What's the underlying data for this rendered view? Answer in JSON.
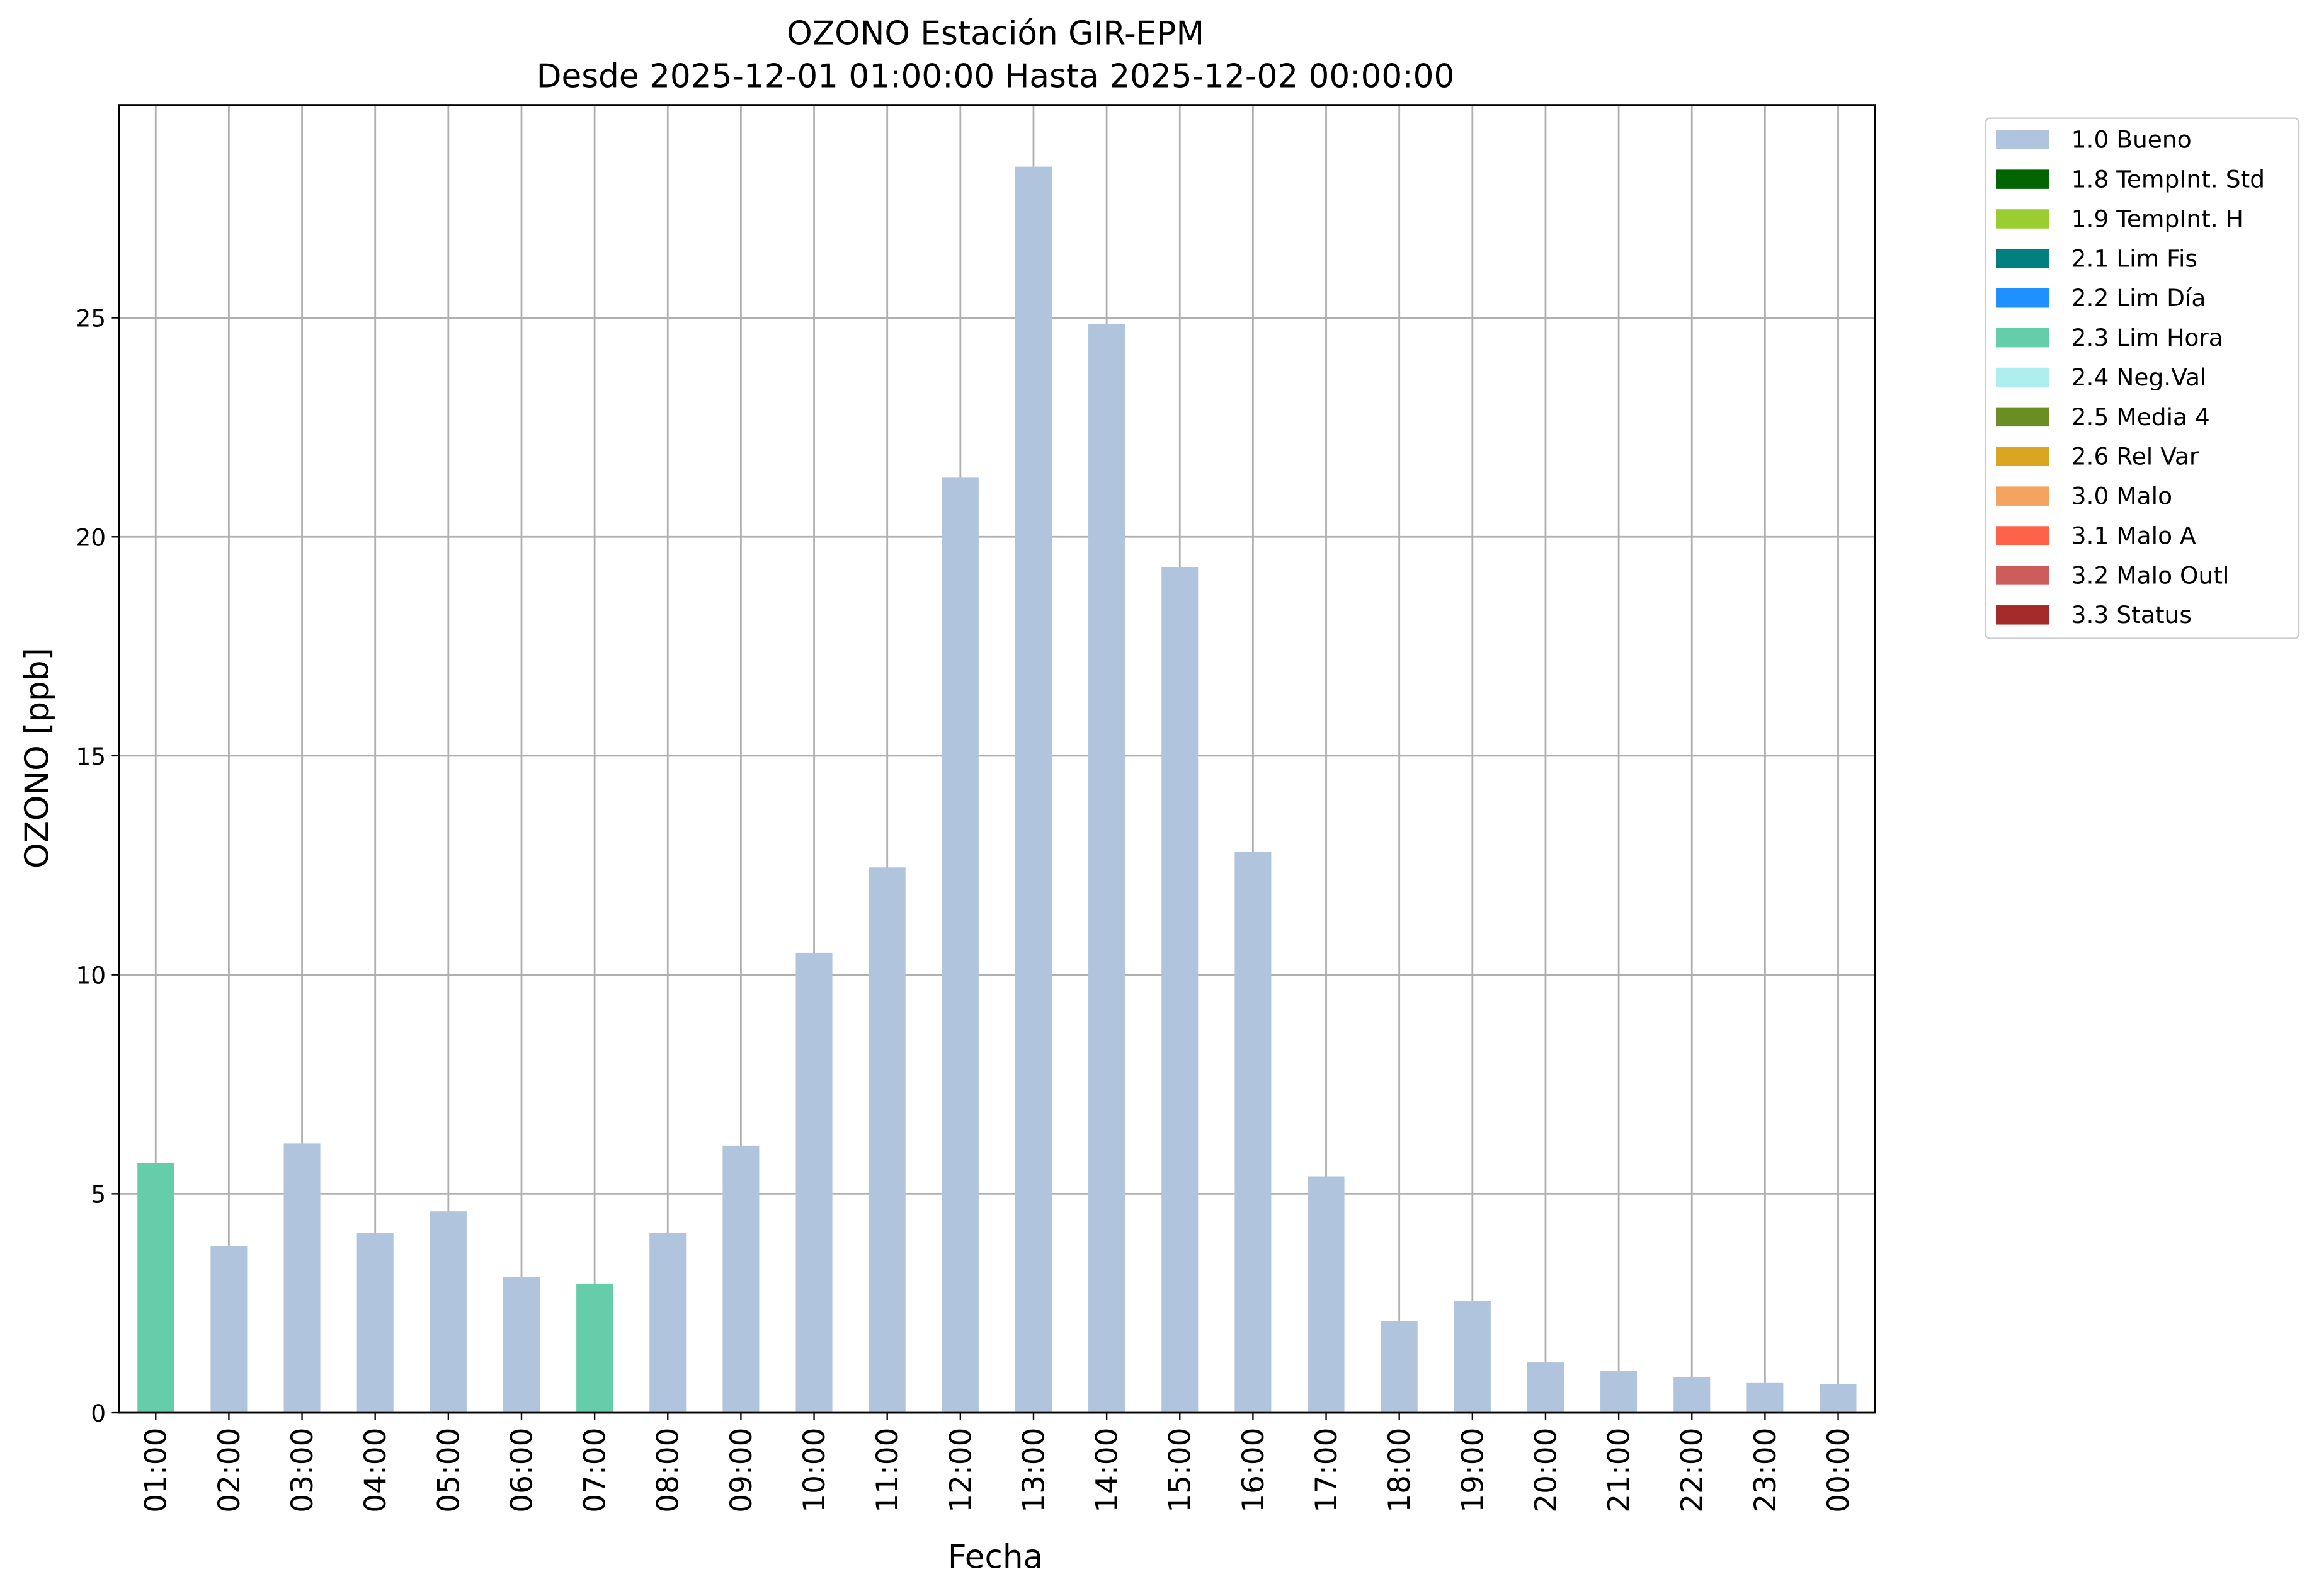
{
  "chart_data": {
    "type": "bar",
    "stacked": true,
    "title": "OZONO Estación GIR-EPM",
    "subtitle": "Desde 2025-12-01 01:00:00 Hasta 2025-12-02 00:00:00",
    "x_label": "Fecha",
    "y_label": "OZONO [ppb]",
    "categories": [
      "01:00",
      "02:00",
      "03:00",
      "04:00",
      "05:00",
      "06:00",
      "07:00",
      "08:00",
      "09:00",
      "10:00",
      "11:00",
      "12:00",
      "13:00",
      "14:00",
      "15:00",
      "16:00",
      "17:00",
      "18:00",
      "19:00",
      "20:00",
      "21:00",
      "22:00",
      "23:00",
      "00:00"
    ],
    "series": [
      {
        "name": "1.0 Bueno",
        "color": "#b0c4de",
        "values": [
          null,
          3.8,
          6.15,
          4.1,
          4.6,
          3.1,
          null,
          4.1,
          6.1,
          10.5,
          12.45,
          21.35,
          28.45,
          24.85,
          19.3,
          12.8,
          5.4,
          2.1,
          2.55,
          1.15,
          0.95,
          0.82,
          0.68,
          0.65
        ]
      },
      {
        "name": "1.8 TempInt. Std",
        "color": "#006400",
        "values": [
          null,
          null,
          null,
          null,
          null,
          null,
          null,
          null,
          null,
          null,
          null,
          null,
          null,
          null,
          null,
          null,
          null,
          null,
          null,
          null,
          null,
          null,
          null,
          null
        ]
      },
      {
        "name": "1.9 TempInt. H",
        "color": "#9acd32",
        "values": [
          null,
          null,
          null,
          null,
          null,
          null,
          null,
          null,
          null,
          null,
          null,
          null,
          null,
          null,
          null,
          null,
          null,
          null,
          null,
          null,
          null,
          null,
          null,
          null
        ]
      },
      {
        "name": "2.1 Lim Fis",
        "color": "#008080",
        "values": [
          null,
          null,
          null,
          null,
          null,
          null,
          null,
          null,
          null,
          null,
          null,
          null,
          null,
          null,
          null,
          null,
          null,
          null,
          null,
          null,
          null,
          null,
          null,
          null
        ]
      },
      {
        "name": "2.2 Lim Día",
        "color": "#1e90ff",
        "values": [
          null,
          null,
          null,
          null,
          null,
          null,
          null,
          null,
          null,
          null,
          null,
          null,
          null,
          null,
          null,
          null,
          null,
          null,
          null,
          null,
          null,
          null,
          null,
          null
        ]
      },
      {
        "name": "2.3 Lim Hora",
        "color": "#66cdaa",
        "values": [
          5.7,
          null,
          null,
          null,
          null,
          null,
          2.95,
          null,
          null,
          null,
          null,
          null,
          null,
          null,
          null,
          null,
          null,
          null,
          null,
          null,
          null,
          null,
          null,
          null
        ]
      },
      {
        "name": "2.4 Neg.Val",
        "color": "#afeeee",
        "values": [
          null,
          null,
          null,
          null,
          null,
          null,
          null,
          null,
          null,
          null,
          null,
          null,
          null,
          null,
          null,
          null,
          null,
          null,
          null,
          null,
          null,
          null,
          null,
          null
        ]
      },
      {
        "name": "2.5 Media 4",
        "color": "#6b8e23",
        "values": [
          null,
          null,
          null,
          null,
          null,
          null,
          null,
          null,
          null,
          null,
          null,
          null,
          null,
          null,
          null,
          null,
          null,
          null,
          null,
          null,
          null,
          null,
          null,
          null
        ]
      },
      {
        "name": "2.6 Rel Var",
        "color": "#daa520",
        "values": [
          null,
          null,
          null,
          null,
          null,
          null,
          null,
          null,
          null,
          null,
          null,
          null,
          null,
          null,
          null,
          null,
          null,
          null,
          null,
          null,
          null,
          null,
          null,
          null
        ]
      },
      {
        "name": "3.0 Malo",
        "color": "#f4a460",
        "values": [
          null,
          null,
          null,
          null,
          null,
          null,
          null,
          null,
          null,
          null,
          null,
          null,
          null,
          null,
          null,
          null,
          null,
          null,
          null,
          null,
          null,
          null,
          null,
          null
        ]
      },
      {
        "name": "3.1 Malo A",
        "color": "#ff6347",
        "values": [
          null,
          null,
          null,
          null,
          null,
          null,
          null,
          null,
          null,
          null,
          null,
          null,
          null,
          null,
          null,
          null,
          null,
          null,
          null,
          null,
          null,
          null,
          null,
          null
        ]
      },
      {
        "name": "3.2 Malo Outl",
        "color": "#cd5c5c",
        "values": [
          null,
          null,
          null,
          null,
          null,
          null,
          null,
          null,
          null,
          null,
          null,
          null,
          null,
          null,
          null,
          null,
          null,
          null,
          null,
          null,
          null,
          null,
          null,
          null
        ]
      },
      {
        "name": "3.3 Status",
        "color": "#a52a2a",
        "values": [
          null,
          null,
          null,
          null,
          null,
          null,
          null,
          null,
          null,
          null,
          null,
          null,
          null,
          null,
          null,
          null,
          null,
          null,
          null,
          null,
          null,
          null,
          null,
          null
        ]
      }
    ],
    "ylim": [
      0,
      29.86
    ],
    "yticks": [
      0,
      5,
      10,
      15,
      20,
      25
    ],
    "grid": true,
    "legend": "outside right"
  }
}
